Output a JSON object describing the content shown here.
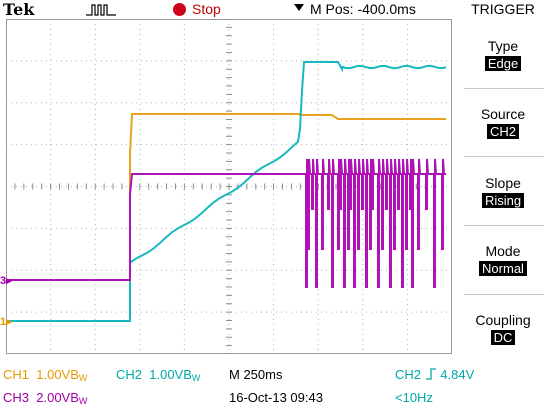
{
  "header": {
    "brand": "Tek",
    "trigger_icon": "pulse-trigger-icon",
    "run_state": "Stop",
    "run_state_color": "#d0021b",
    "horizontal_position": "M Pos: -400.0ms"
  },
  "menu": {
    "title": "TRIGGER",
    "items": [
      {
        "label": "Type",
        "value": "Edge"
      },
      {
        "label": "Source",
        "value": "CH2"
      },
      {
        "label": "Slope",
        "value": "Rising"
      },
      {
        "label": "Mode",
        "value": "Normal"
      },
      {
        "label": "Coupling",
        "value": "DC"
      }
    ]
  },
  "channels": {
    "ch1": {
      "label": "CH1",
      "scale": "1.00V",
      "bw": "B",
      "bw_sub": "W",
      "marker": "1",
      "color": "#e8a21f"
    },
    "ch2": {
      "label": "CH2",
      "scale": "1.00V",
      "bw": "B",
      "bw_sub": "W",
      "color": "#18b8c0"
    },
    "ch3": {
      "label": "CH3",
      "scale": "2.00V",
      "bw": "B",
      "bw_sub": "W",
      "marker": "3",
      "color": "#b012b8"
    }
  },
  "status": {
    "timebase": "M 250ms",
    "date_time": "16-Oct-13 09:43",
    "trigger_source": "CH2",
    "trigger_level": "4.84V",
    "trigger_freq": "<10Hz"
  }
}
